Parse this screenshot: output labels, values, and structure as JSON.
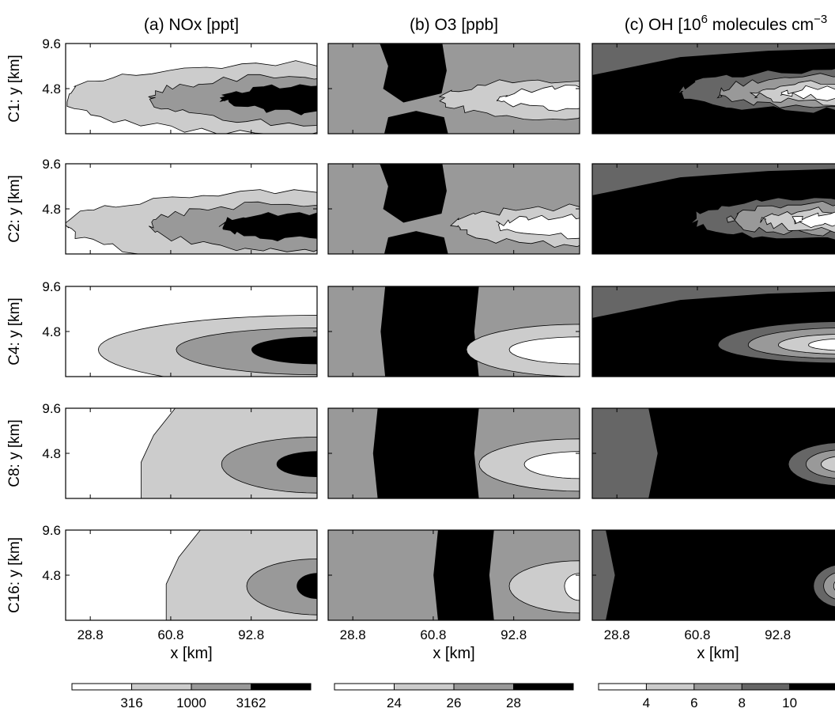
{
  "chart_data": {
    "type": "heatmap",
    "layout": "grid of filled-contour panels, 5 rows x 3 columns",
    "grayscale": true,
    "x_axis": {
      "label": "x [km]",
      "ticks": [
        28.8,
        60.8,
        92.8
      ],
      "tick_labels": [
        "28.8",
        "60.8",
        "92.8"
      ],
      "range": [
        19,
        119
      ]
    },
    "y_axis": {
      "ticks": [
        4.8,
        9.6
      ],
      "tick_labels": [
        "4.8",
        "9.6"
      ],
      "range": [
        0,
        9.6
      ]
    },
    "rows": [
      {
        "id": "C1",
        "label": "C1: y [km]"
      },
      {
        "id": "C2",
        "label": "C2: y [km]"
      },
      {
        "id": "C4",
        "label": "C4: y [km]"
      },
      {
        "id": "C8",
        "label": "C8: y [km]"
      },
      {
        "id": "C16",
        "label": "C16: y [km]"
      }
    ],
    "columns": [
      {
        "id": "NOx",
        "title_main": "(a) NOx [ppt]",
        "colorbar": {
          "levels": [
            "316",
            "1000",
            "3162"
          ],
          "colors": [
            "#ffffff",
            "#cccccc",
            "#999999",
            "#000000"
          ]
        }
      },
      {
        "id": "O3",
        "title_main": "(b) O3 [ppb]",
        "colorbar": {
          "levels": [
            "24",
            "26",
            "28"
          ],
          "colors": [
            "#ffffff",
            "#cccccc",
            "#999999",
            "#000000"
          ]
        }
      },
      {
        "id": "OH",
        "title_main": "(c) OH [10",
        "title_sup": "6",
        "title_rest": " molecules cm",
        "title_sup2": "−3",
        "colorbar": {
          "levels": [
            "4",
            "6",
            "8",
            "10"
          ],
          "colors": [
            "#ffffff",
            "#cccccc",
            "#999999",
            "#666666",
            "#000000"
          ]
        }
      }
    ]
  }
}
